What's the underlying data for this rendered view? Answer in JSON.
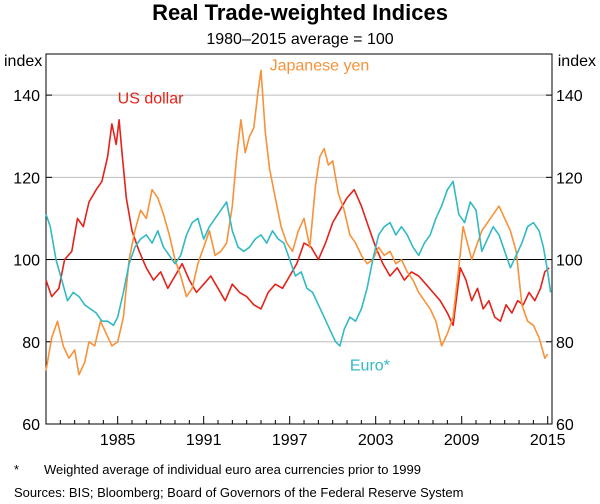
{
  "chart_data": {
    "type": "line",
    "title": "Real Trade-weighted Indices",
    "subtitle": "1980–2015 average = 100",
    "ylabel_left": "index",
    "ylabel_right": "index",
    "ylim": [
      60,
      150
    ],
    "yticks": [
      "60",
      "80",
      "100",
      "120",
      "140"
    ],
    "xlim": [
      1980,
      2015.3
    ],
    "xticks": [
      {
        "label": "1985",
        "value": 1985
      },
      {
        "label": "1991",
        "value": 1991
      },
      {
        "label": "1997",
        "value": 1997
      },
      {
        "label": "2003",
        "value": 2003
      },
      {
        "label": "2009",
        "value": 2009
      },
      {
        "label": "2015",
        "value": 2015
      }
    ],
    "reference_line": 100,
    "series": [
      {
        "name": "US dollar",
        "label": "US dollar",
        "color": "#e2231a",
        "points": [
          [
            1980.0,
            95
          ],
          [
            1980.4,
            91
          ],
          [
            1980.9,
            93
          ],
          [
            1981.3,
            100
          ],
          [
            1981.8,
            102
          ],
          [
            1982.2,
            110
          ],
          [
            1982.6,
            108
          ],
          [
            1983.0,
            114
          ],
          [
            1983.5,
            117
          ],
          [
            1983.9,
            119
          ],
          [
            1984.3,
            125
          ],
          [
            1984.6,
            133
          ],
          [
            1984.9,
            128
          ],
          [
            1985.1,
            134
          ],
          [
            1985.3,
            126
          ],
          [
            1985.6,
            115
          ],
          [
            1986.0,
            107
          ],
          [
            1986.5,
            102
          ],
          [
            1987.0,
            98
          ],
          [
            1987.5,
            95
          ],
          [
            1988.0,
            97
          ],
          [
            1988.5,
            93
          ],
          [
            1989.0,
            96
          ],
          [
            1989.5,
            99
          ],
          [
            1990.0,
            95
          ],
          [
            1990.5,
            92
          ],
          [
            1991.0,
            94
          ],
          [
            1991.5,
            96
          ],
          [
            1992.0,
            93
          ],
          [
            1992.5,
            90
          ],
          [
            1993.0,
            94
          ],
          [
            1993.5,
            92
          ],
          [
            1994.0,
            91
          ],
          [
            1994.5,
            89
          ],
          [
            1995.0,
            88
          ],
          [
            1995.5,
            92
          ],
          [
            1996.0,
            94
          ],
          [
            1996.5,
            93
          ],
          [
            1997.0,
            96
          ],
          [
            1997.5,
            99
          ],
          [
            1998.0,
            104
          ],
          [
            1998.5,
            103
          ],
          [
            1999.0,
            100
          ],
          [
            1999.5,
            104
          ],
          [
            2000.0,
            109
          ],
          [
            2000.5,
            112
          ],
          [
            2001.0,
            115
          ],
          [
            2001.5,
            117
          ],
          [
            2002.0,
            113
          ],
          [
            2002.5,
            108
          ],
          [
            2003.0,
            103
          ],
          [
            2003.5,
            99
          ],
          [
            2004.0,
            96
          ],
          [
            2004.5,
            98
          ],
          [
            2005.0,
            95
          ],
          [
            2005.5,
            97
          ],
          [
            2006.0,
            96
          ],
          [
            2006.5,
            94
          ],
          [
            2007.0,
            92
          ],
          [
            2007.5,
            90
          ],
          [
            2008.0,
            87
          ],
          [
            2008.4,
            84
          ],
          [
            2008.9,
            98
          ],
          [
            2009.3,
            95
          ],
          [
            2009.7,
            90
          ],
          [
            2010.1,
            93
          ],
          [
            2010.5,
            88
          ],
          [
            2010.9,
            90
          ],
          [
            2011.3,
            86
          ],
          [
            2011.7,
            85
          ],
          [
            2012.1,
            89
          ],
          [
            2012.5,
            87
          ],
          [
            2012.9,
            90
          ],
          [
            2013.3,
            89
          ],
          [
            2013.7,
            92
          ],
          [
            2014.1,
            90
          ],
          [
            2014.5,
            93
          ],
          [
            2014.8,
            97
          ],
          [
            2015.1,
            98
          ]
        ]
      },
      {
        "name": "Japanese yen",
        "label": "Japanese yen",
        "color": "#f7923a",
        "points": [
          [
            1980.0,
            73
          ],
          [
            1980.4,
            81
          ],
          [
            1980.8,
            85
          ],
          [
            1981.2,
            79
          ],
          [
            1981.6,
            76
          ],
          [
            1982.0,
            78
          ],
          [
            1982.3,
            72
          ],
          [
            1982.7,
            75
          ],
          [
            1983.0,
            80
          ],
          [
            1983.4,
            79
          ],
          [
            1983.8,
            85
          ],
          [
            1984.2,
            82
          ],
          [
            1984.6,
            79
          ],
          [
            1985.0,
            80
          ],
          [
            1985.4,
            86
          ],
          [
            1985.8,
            100
          ],
          [
            1986.2,
            107
          ],
          [
            1986.6,
            112
          ],
          [
            1987.0,
            110
          ],
          [
            1987.4,
            117
          ],
          [
            1987.8,
            115
          ],
          [
            1988.2,
            111
          ],
          [
            1988.6,
            106
          ],
          [
            1989.0,
            100
          ],
          [
            1989.4,
            96
          ],
          [
            1989.8,
            91
          ],
          [
            1990.2,
            93
          ],
          [
            1990.6,
            99
          ],
          [
            1991.0,
            103
          ],
          [
            1991.4,
            107
          ],
          [
            1991.8,
            101
          ],
          [
            1992.2,
            102
          ],
          [
            1992.6,
            104
          ],
          [
            1993.0,
            113
          ],
          [
            1993.3,
            125
          ],
          [
            1993.6,
            134
          ],
          [
            1993.9,
            126
          ],
          [
            1994.2,
            130
          ],
          [
            1994.5,
            132
          ],
          [
            1994.8,
            141
          ],
          [
            1995.0,
            146
          ],
          [
            1995.3,
            131
          ],
          [
            1995.6,
            122
          ],
          [
            1996.0,
            115
          ],
          [
            1996.4,
            108
          ],
          [
            1996.8,
            104
          ],
          [
            1997.2,
            102
          ],
          [
            1997.6,
            107
          ],
          [
            1998.0,
            110
          ],
          [
            1998.4,
            103
          ],
          [
            1998.8,
            118
          ],
          [
            1999.1,
            125
          ],
          [
            1999.4,
            127
          ],
          [
            1999.7,
            123
          ],
          [
            2000.0,
            124
          ],
          [
            2000.4,
            116
          ],
          [
            2000.8,
            112
          ],
          [
            2001.2,
            106
          ],
          [
            2001.6,
            104
          ],
          [
            2002.0,
            101
          ],
          [
            2002.4,
            99
          ],
          [
            2002.8,
            100
          ],
          [
            2003.2,
            103
          ],
          [
            2003.6,
            101
          ],
          [
            2004.0,
            102
          ],
          [
            2004.4,
            99
          ],
          [
            2004.8,
            100
          ],
          [
            2005.2,
            97
          ],
          [
            2005.6,
            95
          ],
          [
            2006.0,
            92
          ],
          [
            2006.4,
            90
          ],
          [
            2006.8,
            88
          ],
          [
            2007.2,
            85
          ],
          [
            2007.6,
            79
          ],
          [
            2008.0,
            82
          ],
          [
            2008.4,
            86
          ],
          [
            2008.8,
            98
          ],
          [
            2009.1,
            108
          ],
          [
            2009.4,
            104
          ],
          [
            2009.7,
            100
          ],
          [
            2010.0,
            103
          ],
          [
            2010.4,
            107
          ],
          [
            2010.8,
            109
          ],
          [
            2011.2,
            111
          ],
          [
            2011.6,
            113
          ],
          [
            2012.0,
            110
          ],
          [
            2012.4,
            107
          ],
          [
            2012.8,
            102
          ],
          [
            2013.2,
            89
          ],
          [
            2013.6,
            85
          ],
          [
            2014.0,
            84
          ],
          [
            2014.4,
            81
          ],
          [
            2014.8,
            76
          ],
          [
            2015.0,
            77
          ]
        ]
      },
      {
        "name": "Euro",
        "label": "Euro*",
        "color": "#32b9c4",
        "points": [
          [
            1980.0,
            111
          ],
          [
            1980.3,
            108
          ],
          [
            1980.7,
            100
          ],
          [
            1981.1,
            95
          ],
          [
            1981.5,
            90
          ],
          [
            1981.9,
            92
          ],
          [
            1982.3,
            91
          ],
          [
            1982.7,
            89
          ],
          [
            1983.1,
            88
          ],
          [
            1983.5,
            87
          ],
          [
            1983.9,
            85
          ],
          [
            1984.3,
            85
          ],
          [
            1984.7,
            84
          ],
          [
            1985.0,
            86
          ],
          [
            1985.4,
            92
          ],
          [
            1985.8,
            99
          ],
          [
            1986.2,
            103
          ],
          [
            1986.6,
            105
          ],
          [
            1987.0,
            106
          ],
          [
            1987.4,
            104
          ],
          [
            1987.8,
            107
          ],
          [
            1988.2,
            103
          ],
          [
            1988.6,
            101
          ],
          [
            1989.0,
            99
          ],
          [
            1989.4,
            101
          ],
          [
            1989.8,
            106
          ],
          [
            1990.2,
            109
          ],
          [
            1990.6,
            110
          ],
          [
            1991.0,
            105
          ],
          [
            1991.4,
            108
          ],
          [
            1991.8,
            110
          ],
          [
            1992.2,
            112
          ],
          [
            1992.6,
            114
          ],
          [
            1993.0,
            107
          ],
          [
            1993.4,
            103
          ],
          [
            1993.8,
            102
          ],
          [
            1994.2,
            103
          ],
          [
            1994.6,
            105
          ],
          [
            1995.0,
            106
          ],
          [
            1995.4,
            104
          ],
          [
            1995.8,
            107
          ],
          [
            1996.2,
            105
          ],
          [
            1996.6,
            104
          ],
          [
            1997.0,
            100
          ],
          [
            1997.4,
            96
          ],
          [
            1997.8,
            97
          ],
          [
            1998.2,
            93
          ],
          [
            1998.6,
            92
          ],
          [
            1999.0,
            89
          ],
          [
            1999.4,
            86
          ],
          [
            1999.8,
            83
          ],
          [
            2000.2,
            80
          ],
          [
            2000.5,
            79
          ],
          [
            2000.8,
            83
          ],
          [
            2001.2,
            86
          ],
          [
            2001.6,
            85
          ],
          [
            2002.0,
            88
          ],
          [
            2002.4,
            93
          ],
          [
            2002.8,
            100
          ],
          [
            2003.2,
            106
          ],
          [
            2003.6,
            108
          ],
          [
            2004.0,
            109
          ],
          [
            2004.4,
            106
          ],
          [
            2004.8,
            108
          ],
          [
            2005.2,
            106
          ],
          [
            2005.6,
            103
          ],
          [
            2006.0,
            101
          ],
          [
            2006.4,
            104
          ],
          [
            2006.8,
            106
          ],
          [
            2007.2,
            110
          ],
          [
            2007.6,
            113
          ],
          [
            2008.0,
            117
          ],
          [
            2008.4,
            119
          ],
          [
            2008.8,
            111
          ],
          [
            2009.2,
            109
          ],
          [
            2009.6,
            114
          ],
          [
            2010.0,
            112
          ],
          [
            2010.4,
            102
          ],
          [
            2010.8,
            105
          ],
          [
            2011.2,
            108
          ],
          [
            2011.6,
            106
          ],
          [
            2012.0,
            102
          ],
          [
            2012.4,
            98
          ],
          [
            2012.8,
            101
          ],
          [
            2013.2,
            104
          ],
          [
            2013.6,
            108
          ],
          [
            2014.0,
            109
          ],
          [
            2014.4,
            107
          ],
          [
            2014.7,
            103
          ],
          [
            2015.0,
            97
          ],
          [
            2015.2,
            92
          ]
        ]
      }
    ]
  },
  "footnotes": {
    "asterisk": "*",
    "asterisk_text": "Weighted average of individual euro area currencies prior to 1999",
    "sources": "Sources:  BIS; Bloomberg; Board of Governors of the Federal Reserve System"
  }
}
